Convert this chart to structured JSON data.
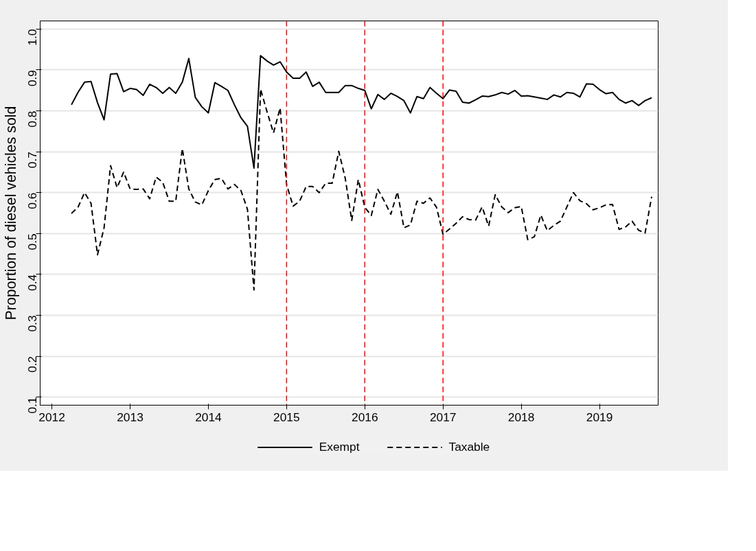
{
  "chart_data": {
    "type": "line",
    "ylabel": "Proportion of diesel vehicles sold",
    "x": [
      2012.25,
      2012.333,
      2012.417,
      2012.5,
      2012.583,
      2012.667,
      2012.75,
      2012.833,
      2012.917,
      2013.0,
      2013.083,
      2013.167,
      2013.25,
      2013.333,
      2013.417,
      2013.5,
      2013.583,
      2013.667,
      2013.75,
      2013.833,
      2013.917,
      2014.0,
      2014.083,
      2014.167,
      2014.25,
      2014.333,
      2014.417,
      2014.5,
      2014.583,
      2014.667,
      2014.75,
      2014.833,
      2014.917,
      2015.0,
      2015.083,
      2015.167,
      2015.25,
      2015.333,
      2015.417,
      2015.5,
      2015.583,
      2015.667,
      2015.75,
      2015.833,
      2015.917,
      2016.0,
      2016.083,
      2016.167,
      2016.25,
      2016.333,
      2016.417,
      2016.5,
      2016.583,
      2016.667,
      2016.75,
      2016.833,
      2016.917,
      2017.0,
      2017.083,
      2017.167,
      2017.25,
      2017.333,
      2017.417,
      2017.5,
      2017.583,
      2017.667,
      2017.75,
      2017.833,
      2017.917,
      2018.0,
      2018.083,
      2018.167,
      2018.25,
      2018.333,
      2018.417,
      2018.5,
      2018.583,
      2018.667,
      2018.75,
      2018.833,
      2018.917,
      2019.0,
      2019.083,
      2019.167,
      2019.25,
      2019.333,
      2019.417,
      2019.5,
      2019.583,
      2019.667
    ],
    "series": [
      {
        "name": "Exempt",
        "color": "#000000",
        "line_style": "solid",
        "values": [
          0.815,
          0.845,
          0.87,
          0.872,
          0.82,
          0.778,
          0.89,
          0.891,
          0.847,
          0.855,
          0.852,
          0.838,
          0.865,
          0.857,
          0.843,
          0.857,
          0.843,
          0.87,
          0.928,
          0.833,
          0.81,
          0.795,
          0.869,
          0.86,
          0.85,
          0.815,
          0.783,
          0.762,
          0.66,
          0.935,
          0.922,
          0.912,
          0.92,
          0.895,
          0.88,
          0.88,
          0.895,
          0.86,
          0.87,
          0.845,
          0.845,
          0.845,
          0.862,
          0.862,
          0.855,
          0.85,
          0.805,
          0.84,
          0.828,
          0.843,
          0.835,
          0.825,
          0.795,
          0.835,
          0.83,
          0.857,
          0.843,
          0.83,
          0.851,
          0.848,
          0.821,
          0.819,
          0.827,
          0.836,
          0.835,
          0.839,
          0.845,
          0.841,
          0.85,
          0.836,
          0.837,
          0.834,
          0.831,
          0.828,
          0.839,
          0.834,
          0.845,
          0.843,
          0.834,
          0.866,
          0.865,
          0.852,
          0.842,
          0.845,
          0.828,
          0.819,
          0.825,
          0.813,
          0.825,
          0.832
        ]
      },
      {
        "name": "Taxable",
        "color": "#000000",
        "line_style": "dashed",
        "values": [
          0.549,
          0.564,
          0.6,
          0.574,
          0.448,
          0.514,
          0.666,
          0.612,
          0.65,
          0.609,
          0.608,
          0.609,
          0.585,
          0.638,
          0.625,
          0.579,
          0.579,
          0.708,
          0.609,
          0.577,
          0.57,
          0.605,
          0.632,
          0.635,
          0.609,
          0.62,
          0.605,
          0.559,
          0.362,
          0.853,
          0.798,
          0.746,
          0.807,
          0.62,
          0.567,
          0.579,
          0.615,
          0.615,
          0.6,
          0.623,
          0.623,
          0.701,
          0.635,
          0.532,
          0.632,
          0.564,
          0.544,
          0.608,
          0.579,
          0.547,
          0.602,
          0.514,
          0.521,
          0.579,
          0.574,
          0.587,
          0.564,
          0.498,
          0.511,
          0.525,
          0.541,
          0.534,
          0.533,
          0.565,
          0.518,
          0.595,
          0.565,
          0.551,
          0.563,
          0.566,
          0.485,
          0.492,
          0.545,
          0.507,
          0.52,
          0.53,
          0.565,
          0.6,
          0.58,
          0.573,
          0.558,
          0.563,
          0.57,
          0.571,
          0.51,
          0.516,
          0.53,
          0.508,
          0.501,
          0.59
        ]
      }
    ],
    "xlim": [
      2011.85,
      2019.75
    ],
    "xticks": [
      2012,
      2013,
      2014,
      2015,
      2016,
      2017,
      2018,
      2019
    ],
    "ylim": [
      0.08,
      1.02
    ],
    "yticks": [
      0.1,
      0.2,
      0.3,
      0.4,
      0.5,
      0.6,
      0.7,
      0.8,
      0.9,
      {
        "value": 1,
        "label": "1.0"
      }
    ],
    "ref_lines": [
      {
        "axis": "x",
        "value": 2015,
        "color": "#ff0000",
        "line_style": "dashed"
      },
      {
        "axis": "x",
        "value": 2016,
        "color": "#ff0000",
        "line_style": "dashed"
      },
      {
        "axis": "x",
        "value": 2017,
        "color": "#ff0000",
        "line_style": "dashed"
      }
    ],
    "grid": "y",
    "legend": "bottom",
    "marker": "none"
  }
}
